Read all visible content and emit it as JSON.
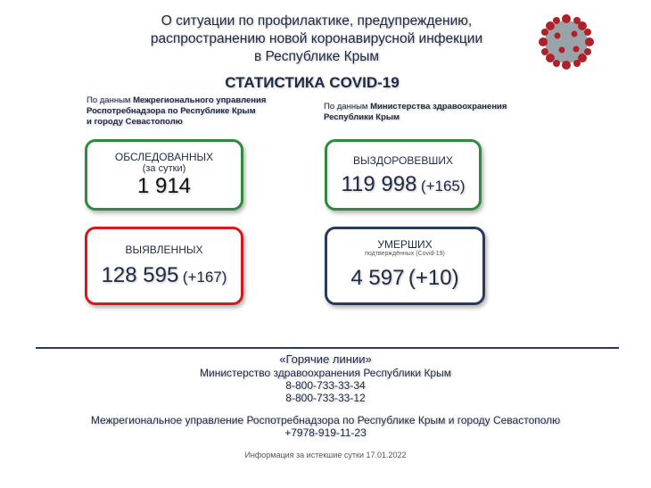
{
  "header": {
    "title_lines": [
      "О ситуации по профилактике, предупреждению,",
      "распространению новой коронавирусной инфекции",
      "в Республике Крым"
    ],
    "subtitle": "СТАТИСТИКА COVID-19",
    "logo_icon": "coronavirus-icon"
  },
  "sources": {
    "left": {
      "prefix": "По данным ",
      "bold": [
        "Межрегионального управления",
        "Роспотребнадзора по Республике Крым",
        "и городу Севастополю"
      ]
    },
    "right": {
      "prefix": "По данным ",
      "bold": [
        "Министерства здравоохранения",
        "Республики Крым"
      ]
    }
  },
  "cards": {
    "tested": {
      "label": "ОБСЛЕДОВАННЫХ",
      "sub": "(за сутки)",
      "value": "1 914",
      "color": "#2e8b3e"
    },
    "recovered": {
      "label": "ВЫЗДОРОВЕВШИХ",
      "value": "119 998",
      "delta": "(+165)",
      "color": "#2e8b3e"
    },
    "detected": {
      "label": "ВЫЯВЛЕННЫХ",
      "value": "128 595",
      "delta": "(+167)",
      "color": "#d9161b"
    },
    "deaths": {
      "label": "УМЕРШИХ",
      "sub": "подтверждённых (Covid-19)",
      "value": "4 597",
      "delta": "(+10)",
      "color": "#2a3a5c"
    }
  },
  "footer": {
    "hotlines_title": "«Горячие линии»",
    "ministry": "Министерство здравоохранения Республики Крым",
    "phone1": "8-800-733-33-34",
    "phone2": "8-800-733-33-12",
    "rospotreb": "Межрегиональное управление Роспотребнадзора по Республике Крым и городу Севастополю",
    "phone3": "+7978-919-11-23",
    "info": "Информация за истекшие сутки 17.01.2022"
  }
}
